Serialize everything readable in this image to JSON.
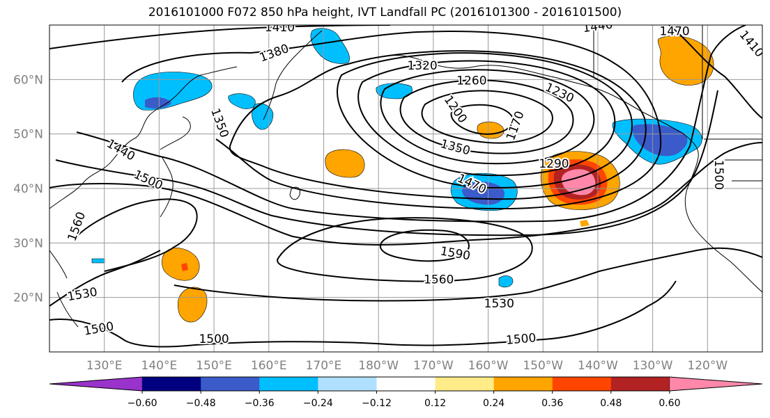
{
  "title": "2016101000 F072 850 hPa height, IVT Landfall PC (2016101300 - 2016101500)",
  "axes": {
    "lat_labels": [
      "60°N",
      "50°N",
      "40°N",
      "30°N",
      "20°N"
    ],
    "lat_values": [
      60,
      50,
      40,
      30,
      20
    ],
    "lon_labels": [
      "130°E",
      "140°E",
      "150°E",
      "160°E",
      "170°E",
      "180°W",
      "170°W",
      "160°W",
      "150°W",
      "140°W",
      "130°W",
      "120°W"
    ],
    "lon_values": [
      130,
      140,
      150,
      160,
      170,
      180,
      190,
      200,
      210,
      220,
      230,
      240
    ],
    "lon_range": [
      120,
      250
    ],
    "lat_range": [
      10,
      70
    ],
    "grid": true
  },
  "colorbar": {
    "colors": [
      "#9933cc",
      "#000080",
      "#3a5bc9",
      "#00bfff",
      "#b0e0ff",
      "#ffffff",
      "#ffeb88",
      "#ffa500",
      "#ff4500",
      "#b22222",
      "#ff88aa"
    ],
    "tick_labels": [
      "−0.60",
      "−0.48",
      "−0.36",
      "−0.24",
      "−0.12",
      "0.12",
      "0.24",
      "0.36",
      "0.48",
      "0.60"
    ],
    "extend": "both"
  },
  "contour_labels": [
    {
      "text": "1410",
      "lon": 162,
      "lat": 69.5,
      "rot": 0
    },
    {
      "text": "1440",
      "lon": 220,
      "lat": 69.7,
      "rot": -8
    },
    {
      "text": "1470",
      "lon": 234,
      "lat": 68.8,
      "rot": 0
    },
    {
      "text": "1410",
      "lon": 248,
      "lat": 66.5,
      "rot": 50
    },
    {
      "text": "1380",
      "lon": 161,
      "lat": 64.8,
      "rot": -20
    },
    {
      "text": "1320",
      "lon": 188,
      "lat": 62.5,
      "rot": 0
    },
    {
      "text": "1260",
      "lon": 197,
      "lat": 59.7,
      "rot": 0
    },
    {
      "text": "1230",
      "lon": 213,
      "lat": 57.5,
      "rot": 25
    },
    {
      "text": "1200",
      "lon": 194,
      "lat": 54.5,
      "rot": 55
    },
    {
      "text": "1170",
      "lon": 205,
      "lat": 51.5,
      "rot": -70
    },
    {
      "text": "1350",
      "lon": 151,
      "lat": 52.0,
      "rot": 70
    },
    {
      "text": "1350",
      "lon": 194,
      "lat": 47.5,
      "rot": 15
    },
    {
      "text": "1290",
      "lon": 212,
      "lat": 44.5,
      "rot": 0
    },
    {
      "text": "1440",
      "lon": 133,
      "lat": 47.0,
      "rot": 30
    },
    {
      "text": "1500",
      "lon": 138,
      "lat": 41.5,
      "rot": 25
    },
    {
      "text": "1470",
      "lon": 197,
      "lat": 40.8,
      "rot": 25
    },
    {
      "text": "1500",
      "lon": 242,
      "lat": 42.5,
      "rot": 90
    },
    {
      "text": "1560",
      "lon": 125,
      "lat": 33.0,
      "rot": -70
    },
    {
      "text": "1590",
      "lon": 194,
      "lat": 28.0,
      "rot": 10
    },
    {
      "text": "1560",
      "lon": 191,
      "lat": 23.2,
      "rot": 0
    },
    {
      "text": "1530",
      "lon": 126,
      "lat": 20.5,
      "rot": -10
    },
    {
      "text": "1530",
      "lon": 202,
      "lat": 18.8,
      "rot": 0
    },
    {
      "text": "1500",
      "lon": 129,
      "lat": 14.2,
      "rot": -10
    },
    {
      "text": "1500",
      "lon": 150,
      "lat": 12.3,
      "rot": 0
    },
    {
      "text": "1500",
      "lon": 206,
      "lat": 12.3,
      "rot": -5
    }
  ]
}
